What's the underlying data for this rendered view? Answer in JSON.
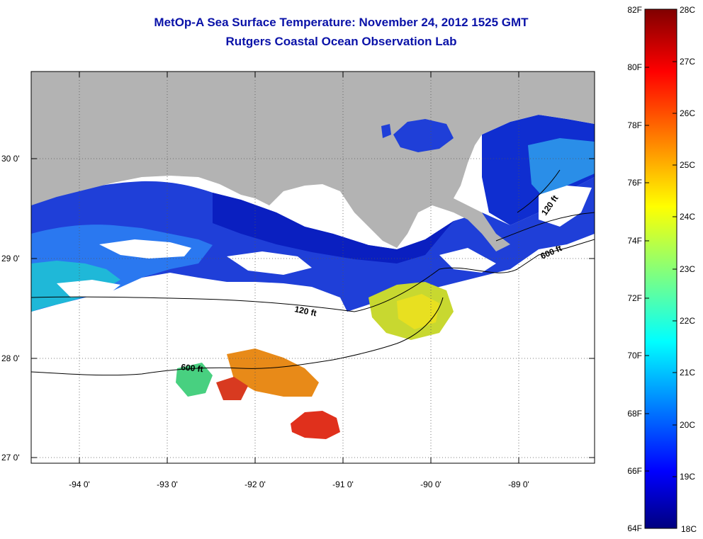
{
  "header": {
    "title": "MetOp-A Sea Surface Temperature:  November 24, 2012 1525 GMT",
    "subtitle": "Rutgers Coastal Ocean Observation Lab"
  },
  "map": {
    "lat_labels": [
      "30 0'",
      "29 0'",
      "28 0'",
      "27 0'"
    ],
    "lon_labels": [
      "-94 0'",
      "-93 0'",
      "-92 0'",
      "-91 0'",
      "-90 0'",
      "-89 0'"
    ],
    "contours": [
      {
        "label": "120 ft"
      },
      {
        "label": "600 ft"
      },
      {
        "label": "600 ft"
      },
      {
        "label": "120 ft"
      }
    ],
    "colors": {
      "land": "#b3b3b3",
      "no_data": "#ffffff",
      "cold_sst": "#0a2ad6",
      "warm_sst": "#f0a818",
      "hot_sst": "#e0281c"
    }
  },
  "colorbar": {
    "fahrenheit": [
      "82F",
      "80F",
      "78F",
      "76F",
      "74F",
      "72F",
      "70F",
      "68F",
      "66F",
      "64F"
    ],
    "celsius": [
      "28C",
      "27C",
      "26C",
      "25C",
      "24C",
      "23C",
      "22C",
      "21C",
      "20C",
      "19C",
      "18C"
    ],
    "range_c": [
      18,
      28
    ]
  }
}
